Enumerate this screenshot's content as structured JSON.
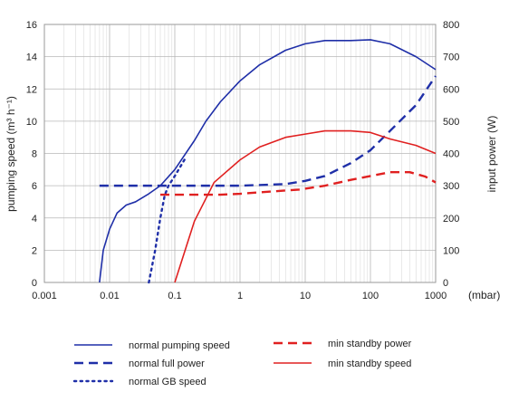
{
  "chart_data": {
    "type": "line",
    "xlabel": "(mbar)",
    "x_scale": "log",
    "xlim": [
      0.001,
      1000
    ],
    "x_ticks": [
      "0.001",
      "0.01",
      "0.1",
      "1",
      "10",
      "100",
      "1000"
    ],
    "grid": true,
    "left_axis": {
      "label": "pumping speed (m³ h⁻¹)",
      "ylim": [
        0,
        16
      ],
      "ticks": [
        "0",
        "2",
        "4",
        "6",
        "8",
        "10",
        "12",
        "14",
        "16"
      ]
    },
    "right_axis": {
      "label": "input power (W)",
      "ylim": [
        0,
        800
      ],
      "ticks": [
        "0",
        "100",
        "200",
        "300",
        "400",
        "500",
        "600",
        "700",
        "800"
      ]
    },
    "legend_placement": "below",
    "series": [
      {
        "name": "normal pumping speed",
        "axis": "left",
        "color": "#1f2fa8",
        "style": "solid",
        "points": [
          [
            0.007,
            0
          ],
          [
            0.008,
            2
          ],
          [
            0.01,
            3.3
          ],
          [
            0.013,
            4.3
          ],
          [
            0.018,
            4.8
          ],
          [
            0.025,
            5.0
          ],
          [
            0.04,
            5.5
          ],
          [
            0.06,
            6.0
          ],
          [
            0.1,
            7.0
          ],
          [
            0.2,
            8.8
          ],
          [
            0.3,
            10.0
          ],
          [
            0.5,
            11.2
          ],
          [
            1,
            12.5
          ],
          [
            2,
            13.5
          ],
          [
            5,
            14.4
          ],
          [
            10,
            14.8
          ],
          [
            20,
            15.0
          ],
          [
            50,
            15.0
          ],
          [
            100,
            15.05
          ],
          [
            200,
            14.8
          ],
          [
            500,
            14.0
          ],
          [
            1000,
            13.2
          ]
        ]
      },
      {
        "name": "normal full power",
        "axis": "right",
        "color": "#1f2fa8",
        "style": "dash",
        "points": [
          [
            0.007,
            300
          ],
          [
            0.1,
            300
          ],
          [
            1,
            300
          ],
          [
            5,
            305
          ],
          [
            10,
            315
          ],
          [
            20,
            330
          ],
          [
            50,
            370
          ],
          [
            100,
            410
          ],
          [
            200,
            470
          ],
          [
            500,
            550
          ],
          [
            1000,
            640
          ]
        ]
      },
      {
        "name": "normal GB speed",
        "axis": "left",
        "color": "#1f2fa8",
        "style": "dot",
        "points": [
          [
            0.04,
            0
          ],
          [
            0.05,
            2.0
          ],
          [
            0.06,
            4.0
          ],
          [
            0.07,
            5.4
          ],
          [
            0.08,
            6.0
          ],
          [
            0.1,
            6.6
          ],
          [
            0.15,
            7.8
          ]
        ]
      },
      {
        "name": "min standby power",
        "axis": "right",
        "color": "#e02020",
        "style": "dash",
        "points": [
          [
            0.06,
            272
          ],
          [
            0.5,
            272
          ],
          [
            1,
            275
          ],
          [
            3,
            282
          ],
          [
            8,
            288
          ],
          [
            20,
            300
          ],
          [
            50,
            318
          ],
          [
            100,
            330
          ],
          [
            200,
            342
          ],
          [
            400,
            342
          ],
          [
            700,
            328
          ],
          [
            1000,
            310
          ]
        ]
      },
      {
        "name": "min standby speed",
        "axis": "left",
        "color": "#e02020",
        "style": "solid",
        "points": [
          [
            0.1,
            0
          ],
          [
            0.2,
            3.8
          ],
          [
            0.4,
            6.2
          ],
          [
            1,
            7.6
          ],
          [
            2,
            8.4
          ],
          [
            5,
            9.0
          ],
          [
            10,
            9.2
          ],
          [
            20,
            9.4
          ],
          [
            50,
            9.4
          ],
          [
            100,
            9.3
          ],
          [
            200,
            8.9
          ],
          [
            500,
            8.5
          ],
          [
            1000,
            8.0
          ]
        ]
      }
    ]
  }
}
